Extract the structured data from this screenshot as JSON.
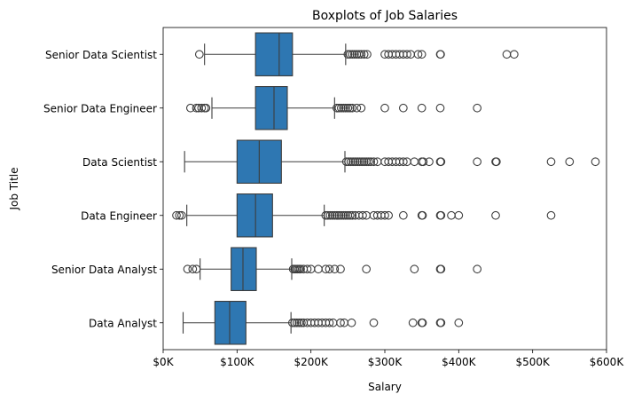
{
  "chart_data": {
    "type": "boxplot",
    "orientation": "horizontal",
    "title": "Boxplots of Job Salaries",
    "xlabel": "Salary",
    "ylabel": "Job Title",
    "xlim": [
      0,
      600000
    ],
    "x_ticks": [
      0,
      100000,
      200000,
      300000,
      400000,
      500000,
      600000
    ],
    "x_tick_labels": [
      "$0K",
      "$100K",
      "$200K",
      "$300K",
      "$400K",
      "$500K",
      "$600K"
    ],
    "grid": false,
    "colors": {
      "box": "#2e77b2",
      "line": "#3d3d3d",
      "outlier_edge": "#3d3d3d"
    },
    "categories": [
      {
        "name": "Senior Data Scientist",
        "whisker_low": 56000,
        "q1": 125000,
        "median": 157000,
        "q3": 175000,
        "whisker_high": 247000,
        "outliers": [
          49000,
          250000,
          253000,
          256000,
          259000,
          262000,
          265000,
          268000,
          272000,
          276000,
          300000,
          305000,
          310000,
          315000,
          320000,
          325000,
          330000,
          335000,
          345000,
          350000,
          375000,
          375500,
          465000,
          475000
        ]
      },
      {
        "name": "Senior Data Engineer",
        "whisker_low": 66000,
        "q1": 125000,
        "median": 150000,
        "q3": 168000,
        "whisker_high": 232000,
        "outliers": [
          37000,
          45000,
          48000,
          52000,
          56000,
          58000,
          235000,
          238000,
          241000,
          244000,
          247000,
          250000,
          253000,
          256000,
          262000,
          268000,
          300000,
          325000,
          350000,
          375000,
          425000
        ]
      },
      {
        "name": "Data Scientist",
        "whisker_low": 29000,
        "q1": 100000,
        "median": 130000,
        "q3": 160000,
        "whisker_high": 246000,
        "outliers": [
          248000,
          251000,
          254000,
          257000,
          260000,
          263000,
          266000,
          269000,
          272000,
          275000,
          278000,
          281000,
          285000,
          290000,
          300000,
          305000,
          310000,
          315000,
          320000,
          325000,
          330000,
          340000,
          350000,
          352000,
          360000,
          375000,
          376000,
          425000,
          450000,
          451000,
          525000,
          550000,
          585000
        ]
      },
      {
        "name": "Data Engineer",
        "whisker_low": 32000,
        "q1": 100000,
        "median": 125000,
        "q3": 148000,
        "whisker_high": 218000,
        "outliers": [
          18000,
          22000,
          25000,
          220000,
          223000,
          226000,
          229000,
          232000,
          235000,
          238000,
          241000,
          244000,
          247000,
          250000,
          253000,
          256000,
          260000,
          265000,
          270000,
          275000,
          285000,
          290000,
          295000,
          300000,
          305000,
          325000,
          350000,
          351000,
          375000,
          376000,
          390000,
          400000,
          450000,
          525000
        ]
      },
      {
        "name": "Senior Data Analyst",
        "whisker_low": 50000,
        "q1": 92000,
        "median": 108000,
        "q3": 126000,
        "whisker_high": 174000,
        "outliers": [
          33000,
          40000,
          45000,
          176000,
          178000,
          180000,
          182000,
          184000,
          186000,
          190000,
          195000,
          200000,
          210000,
          220000,
          225000,
          232000,
          240000,
          275000,
          340000,
          375000,
          376000,
          425000
        ]
      },
      {
        "name": "Data Analyst",
        "whisker_low": 27000,
        "q1": 70000,
        "median": 90000,
        "q3": 112000,
        "whisker_high": 173000,
        "outliers": [
          175000,
          178000,
          181000,
          184000,
          187000,
          190000,
          195000,
          200000,
          205000,
          210000,
          215000,
          220000,
          225000,
          230000,
          240000,
          245000,
          255000,
          285000,
          338000,
          350000,
          351000,
          375000,
          376000,
          400000
        ]
      }
    ]
  }
}
